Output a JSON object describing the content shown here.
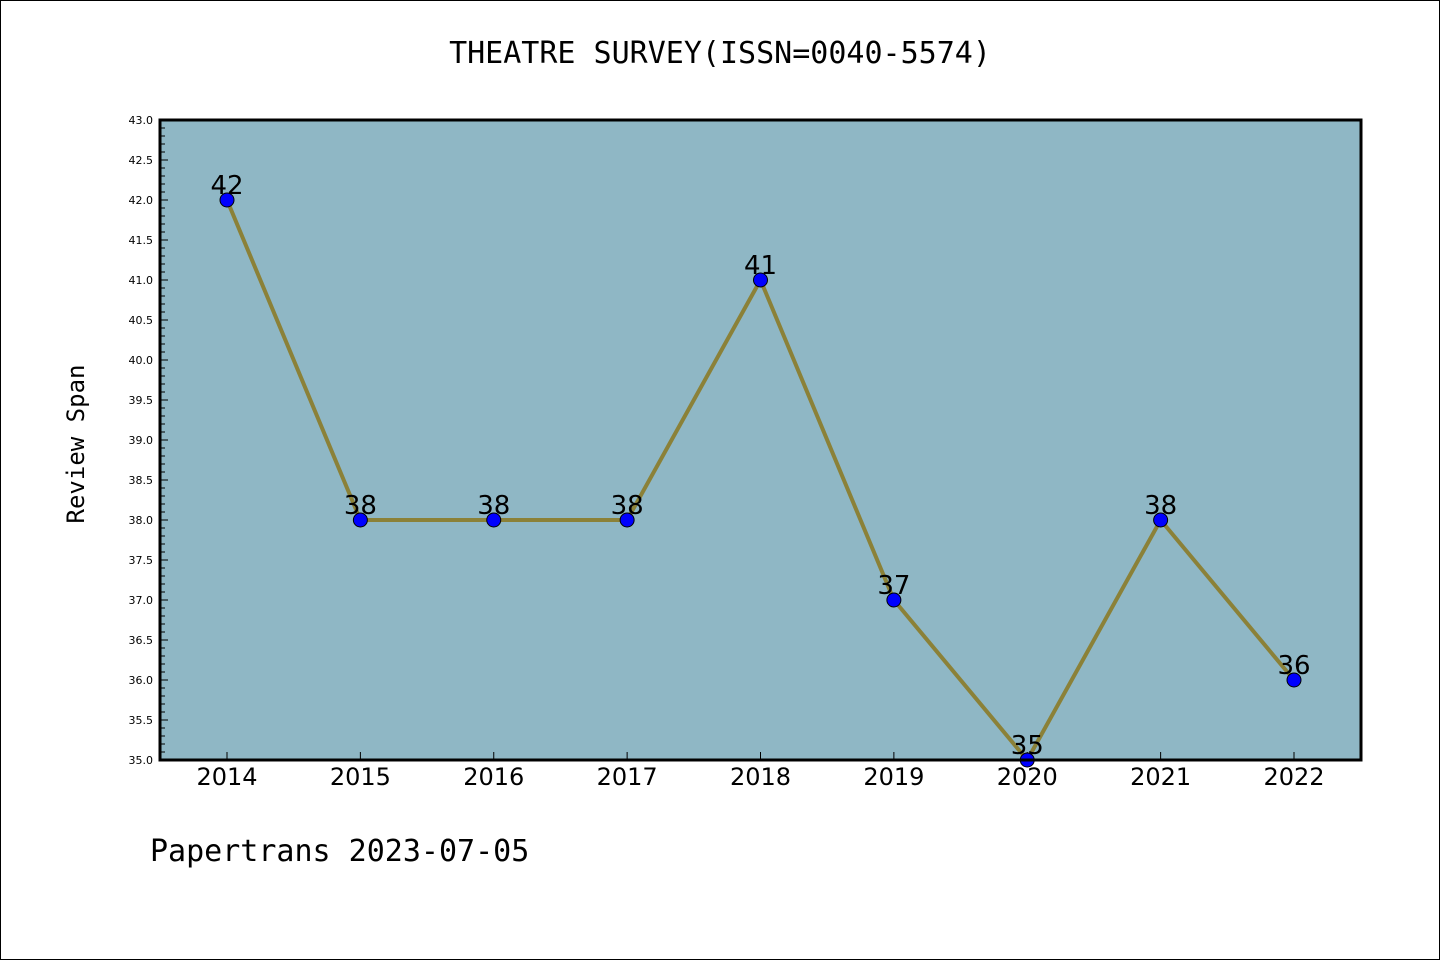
{
  "title": "THEATRE SURVEY(ISSN=0040-5574)",
  "footer": "Papertrans 2023-07-05",
  "chart_data": {
    "type": "line",
    "title": "THEATRE SURVEY(ISSN=0040-5574)",
    "xlabel": "",
    "ylabel": "Review Span",
    "x": [
      "2014",
      "2015",
      "2016",
      "2017",
      "2018",
      "2019",
      "2020",
      "2021",
      "2022"
    ],
    "values": [
      42,
      38,
      38,
      38,
      41,
      37,
      35,
      38,
      36
    ],
    "data_labels": [
      "42",
      "38",
      "38",
      "38",
      "41",
      "37",
      "35",
      "38",
      "36"
    ],
    "ylim": [
      35.0,
      43.0
    ],
    "y_ticks": [
      "35.0",
      "35.5",
      "36.0",
      "36.5",
      "37.0",
      "37.5",
      "38.0",
      "38.5",
      "39.0",
      "39.5",
      "40.0",
      "40.5",
      "41.0",
      "41.5",
      "42.0",
      "42.5",
      "43.0"
    ],
    "grid": false,
    "legend": "none",
    "colors": {
      "plot_background": "#8fb7c5",
      "line": "#8b8138",
      "marker": "#0000ff"
    }
  }
}
